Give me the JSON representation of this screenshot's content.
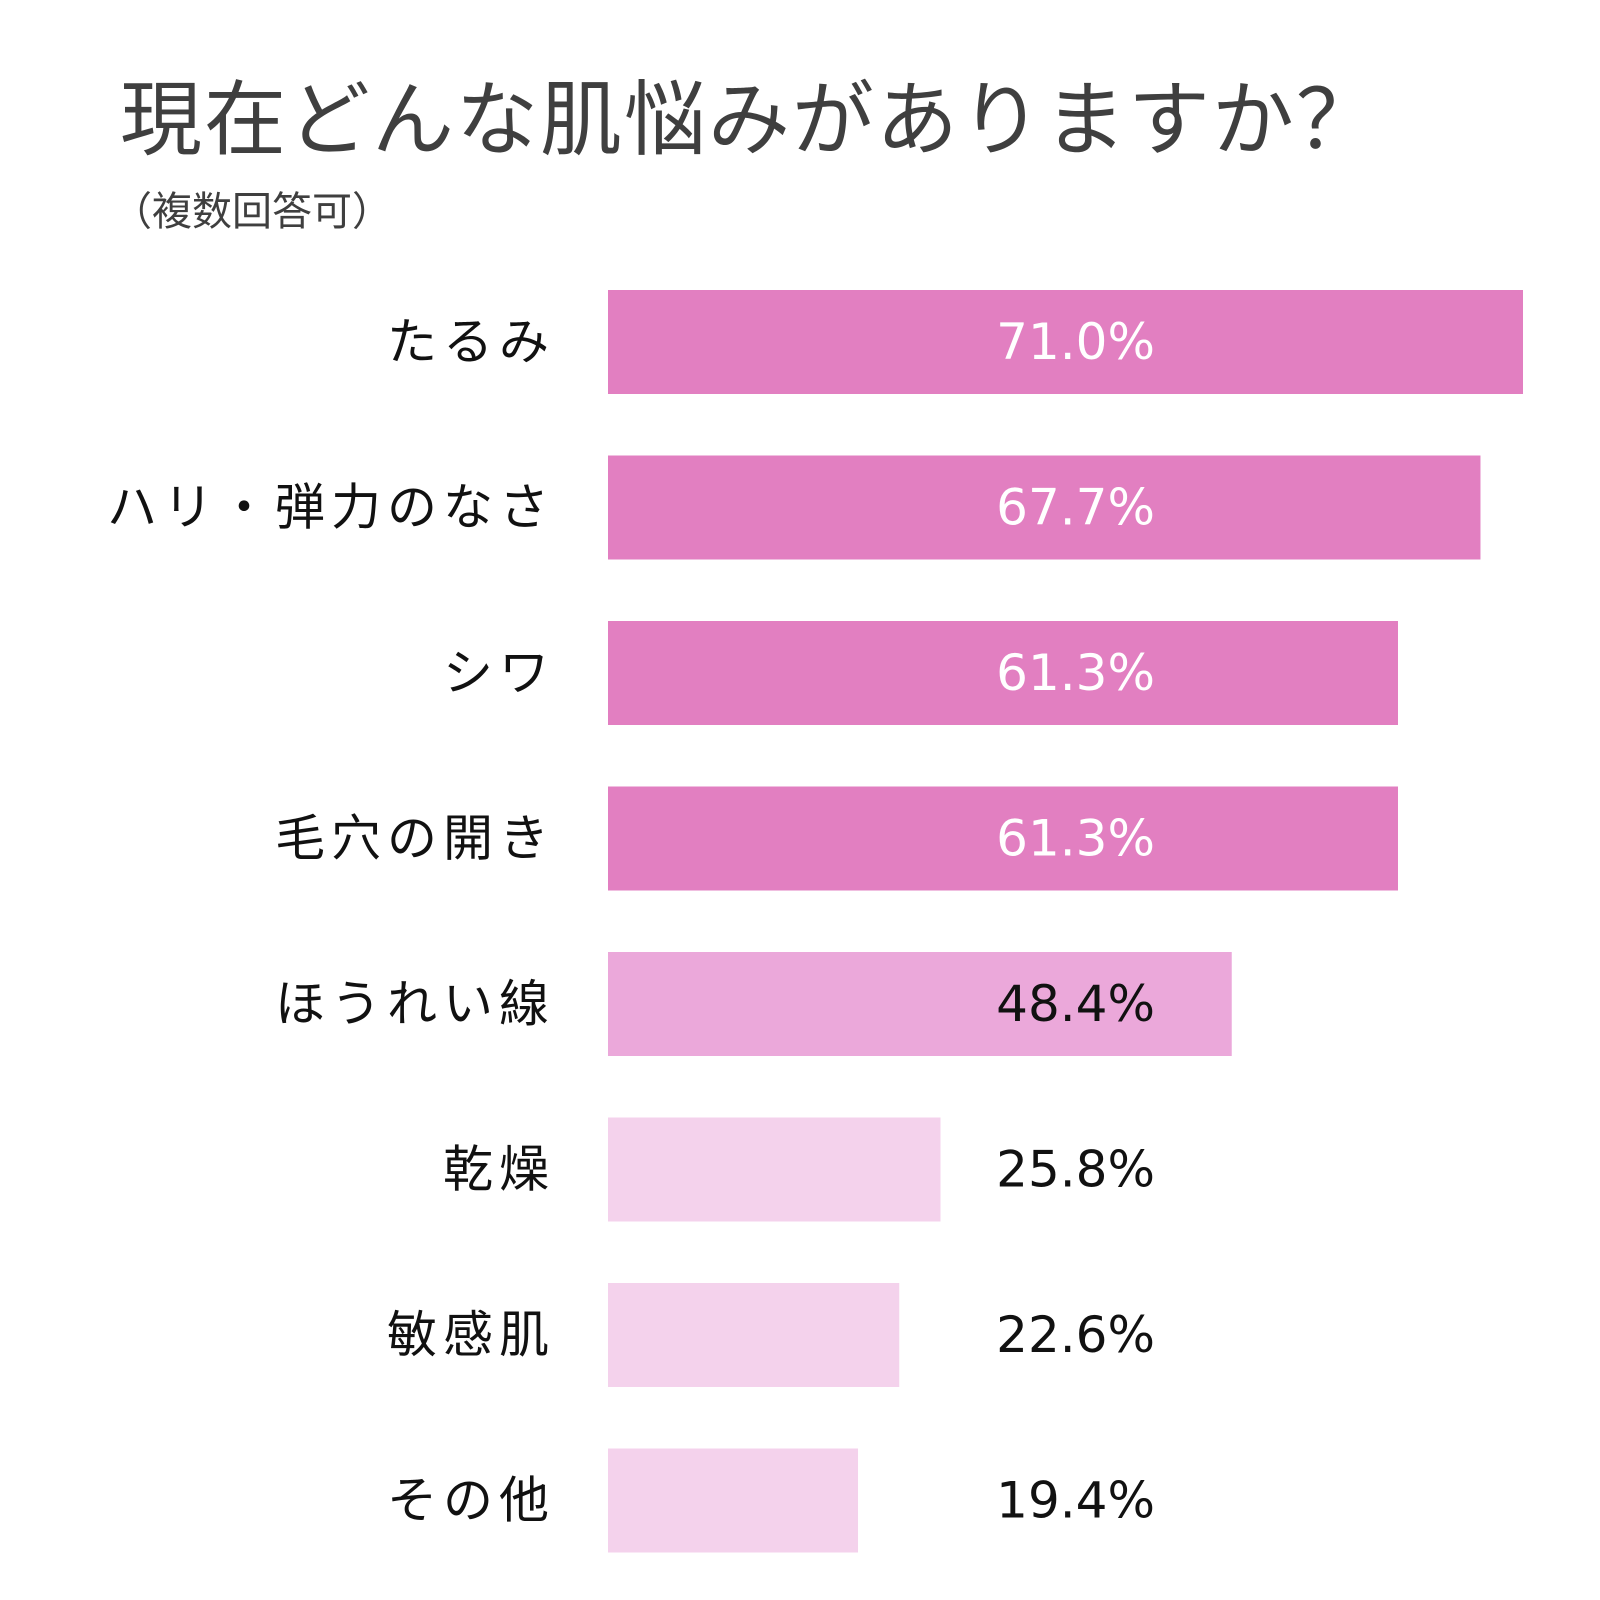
{
  "title": "現在どんな肌悩みがありますか？",
  "subtitle": "（複数回答可）",
  "chart_data": {
    "type": "bar",
    "orientation": "horizontal",
    "title": "現在どんな肌悩みがありますか？",
    "subtitle": "（複数回答可）",
    "categories": [
      "たるみ",
      "ハリ・弾力のなさ",
      "シワ",
      "毛穴の開き",
      "ほうれい線",
      "乾燥",
      "敏感肌",
      "その他"
    ],
    "values": [
      71.0,
      67.7,
      61.3,
      61.3,
      48.4,
      25.8,
      22.6,
      19.4
    ],
    "value_labels": [
      "71.0%",
      "67.7%",
      "61.3%",
      "61.3%",
      "48.4%",
      "25.8%",
      "22.6%",
      "19.4%"
    ],
    "unit": "%",
    "xlim": [
      0,
      71.0
    ],
    "grid": false,
    "legend": "none",
    "colors": {
      "bar_strong": "#e27fc1",
      "bar_medium": "#eba8da",
      "bar_light": "#f4d2ec",
      "label_on_strong": "#ffffff",
      "label_default": "#111111",
      "title": "#3f3f3f"
    },
    "bar_tiers": [
      "strong",
      "strong",
      "strong",
      "strong",
      "medium",
      "light",
      "light",
      "light"
    ]
  }
}
